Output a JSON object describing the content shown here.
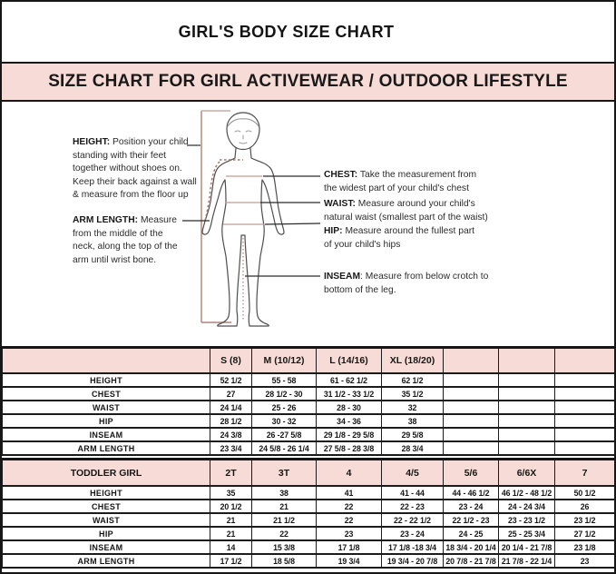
{
  "page": {
    "title": "GIRL'S BODY SIZE CHART",
    "banner": "SIZE CHART FOR GIRL ACTIVEWEAR / OUTDOOR LIFESTYLE"
  },
  "colors": {
    "banner_pink": "#f7dbd6",
    "header_pink": "#f7dbd6",
    "border_black": "#161616",
    "measure_line_brown": "#c49b91",
    "height_bracket_brown": "#ad8379"
  },
  "diagram": {
    "figure": "child-body-outline",
    "notes": {
      "height": {
        "label": "HEIGHT:",
        "lines": [
          " Position your child",
          "standing with their feet",
          "together without shoes on.",
          "Keep their back against a wall",
          "& measure from the floor up"
        ]
      },
      "arm_length": {
        "label": "ARM LENGTH:",
        "lines": [
          "  Measure",
          "from the middle of the",
          "neck, along the top of the",
          "arm until wrist bone."
        ]
      },
      "chest": {
        "label": "CHEST:",
        "lines": [
          " Take the measurement from",
          "the widest part of your child's chest"
        ]
      },
      "waist": {
        "label": "WAIST:",
        "lines": [
          " Measure around your child's",
          "natural waist (smallest part of the waist)"
        ]
      },
      "hip": {
        "label": "HIP:",
        "lines": [
          " Measure around the fullest part",
          "of your child's hips"
        ]
      },
      "inseam": {
        "label": "INSEAM",
        "lines": [
          ": Measure from below crotch to",
          "bottom of the leg."
        ]
      }
    }
  },
  "chart_data": [
    {
      "type": "table",
      "title": "Girl sizes",
      "columns": [
        "",
        "S (8)",
        "M (10/12)",
        "L (14/16)",
        "XL (18/20)",
        "",
        "",
        ""
      ],
      "rows": [
        {
          "label": "HEIGHT",
          "values": [
            "52 1/2",
            "55 - 58",
            "61 - 62 1/2",
            "62 1/2",
            "",
            "",
            ""
          ]
        },
        {
          "label": "CHEST",
          "values": [
            "27",
            "28 1/2 - 30",
            "31 1/2 - 33 1/2",
            "35 1/2",
            "",
            "",
            ""
          ]
        },
        {
          "label": "WAIST",
          "values": [
            "24 1/4",
            "25 - 26",
            "28 - 30",
            "32",
            "",
            "",
            ""
          ]
        },
        {
          "label": "HIP",
          "values": [
            "28 1/2",
            "30 - 32",
            "34 - 36",
            "38",
            "",
            "",
            ""
          ]
        },
        {
          "label": "INSEAM",
          "values": [
            "24 3/8",
            "26 -27 5/8",
            "29 1/8 - 29 5/8",
            "29 5/8",
            "",
            "",
            ""
          ]
        },
        {
          "label": "ARM LENGTH",
          "values": [
            "23 3/4",
            "24 5/8 - 26 1/4",
            "27 5/8 - 28 3/8",
            "28 3/4",
            "",
            "",
            ""
          ]
        }
      ]
    },
    {
      "type": "table",
      "title": "Toddler girl sizes",
      "columns": [
        "TODDLER GIRL",
        "2T",
        "3T",
        "4",
        "4/5",
        "5/6",
        "6/6X",
        "7"
      ],
      "rows": [
        {
          "label": "HEIGHT",
          "values": [
            "35",
            "38",
            "41",
            "41 - 44",
            "44 - 46 1/2",
            "46 1/2 - 48 1/2",
            "50 1/2"
          ]
        },
        {
          "label": "CHEST",
          "values": [
            "20 1/2",
            "21",
            "22",
            "22 - 23",
            "23 - 24",
            "24 - 24 3/4",
            "26"
          ]
        },
        {
          "label": "WAIST",
          "values": [
            "21",
            "21 1/2",
            "22",
            "22 - 22 1/2",
            "22 1/2 - 23",
            "23 - 23 1/2",
            "23 1/2"
          ]
        },
        {
          "label": "HIP",
          "values": [
            "21",
            "22",
            "23",
            "23 - 24",
            "24 - 25",
            "25 - 25 3/4",
            "27 1/2"
          ]
        },
        {
          "label": "INSEAM",
          "values": [
            "14",
            "15 3/8",
            "17 1/8",
            "17 1/8 -18 3/4",
            "18 3/4 - 20 1/4",
            "20 1/4 - 21 7/8",
            "23 1/8"
          ]
        },
        {
          "label": "ARM LENGTH",
          "values": [
            "17 1/2",
            "18 5/8",
            "19 3/4",
            "19 3/4 - 20 7/8",
            "20 7/8 - 21 7/8",
            "21 7/8 - 22 1/4",
            "23"
          ]
        }
      ]
    }
  ]
}
